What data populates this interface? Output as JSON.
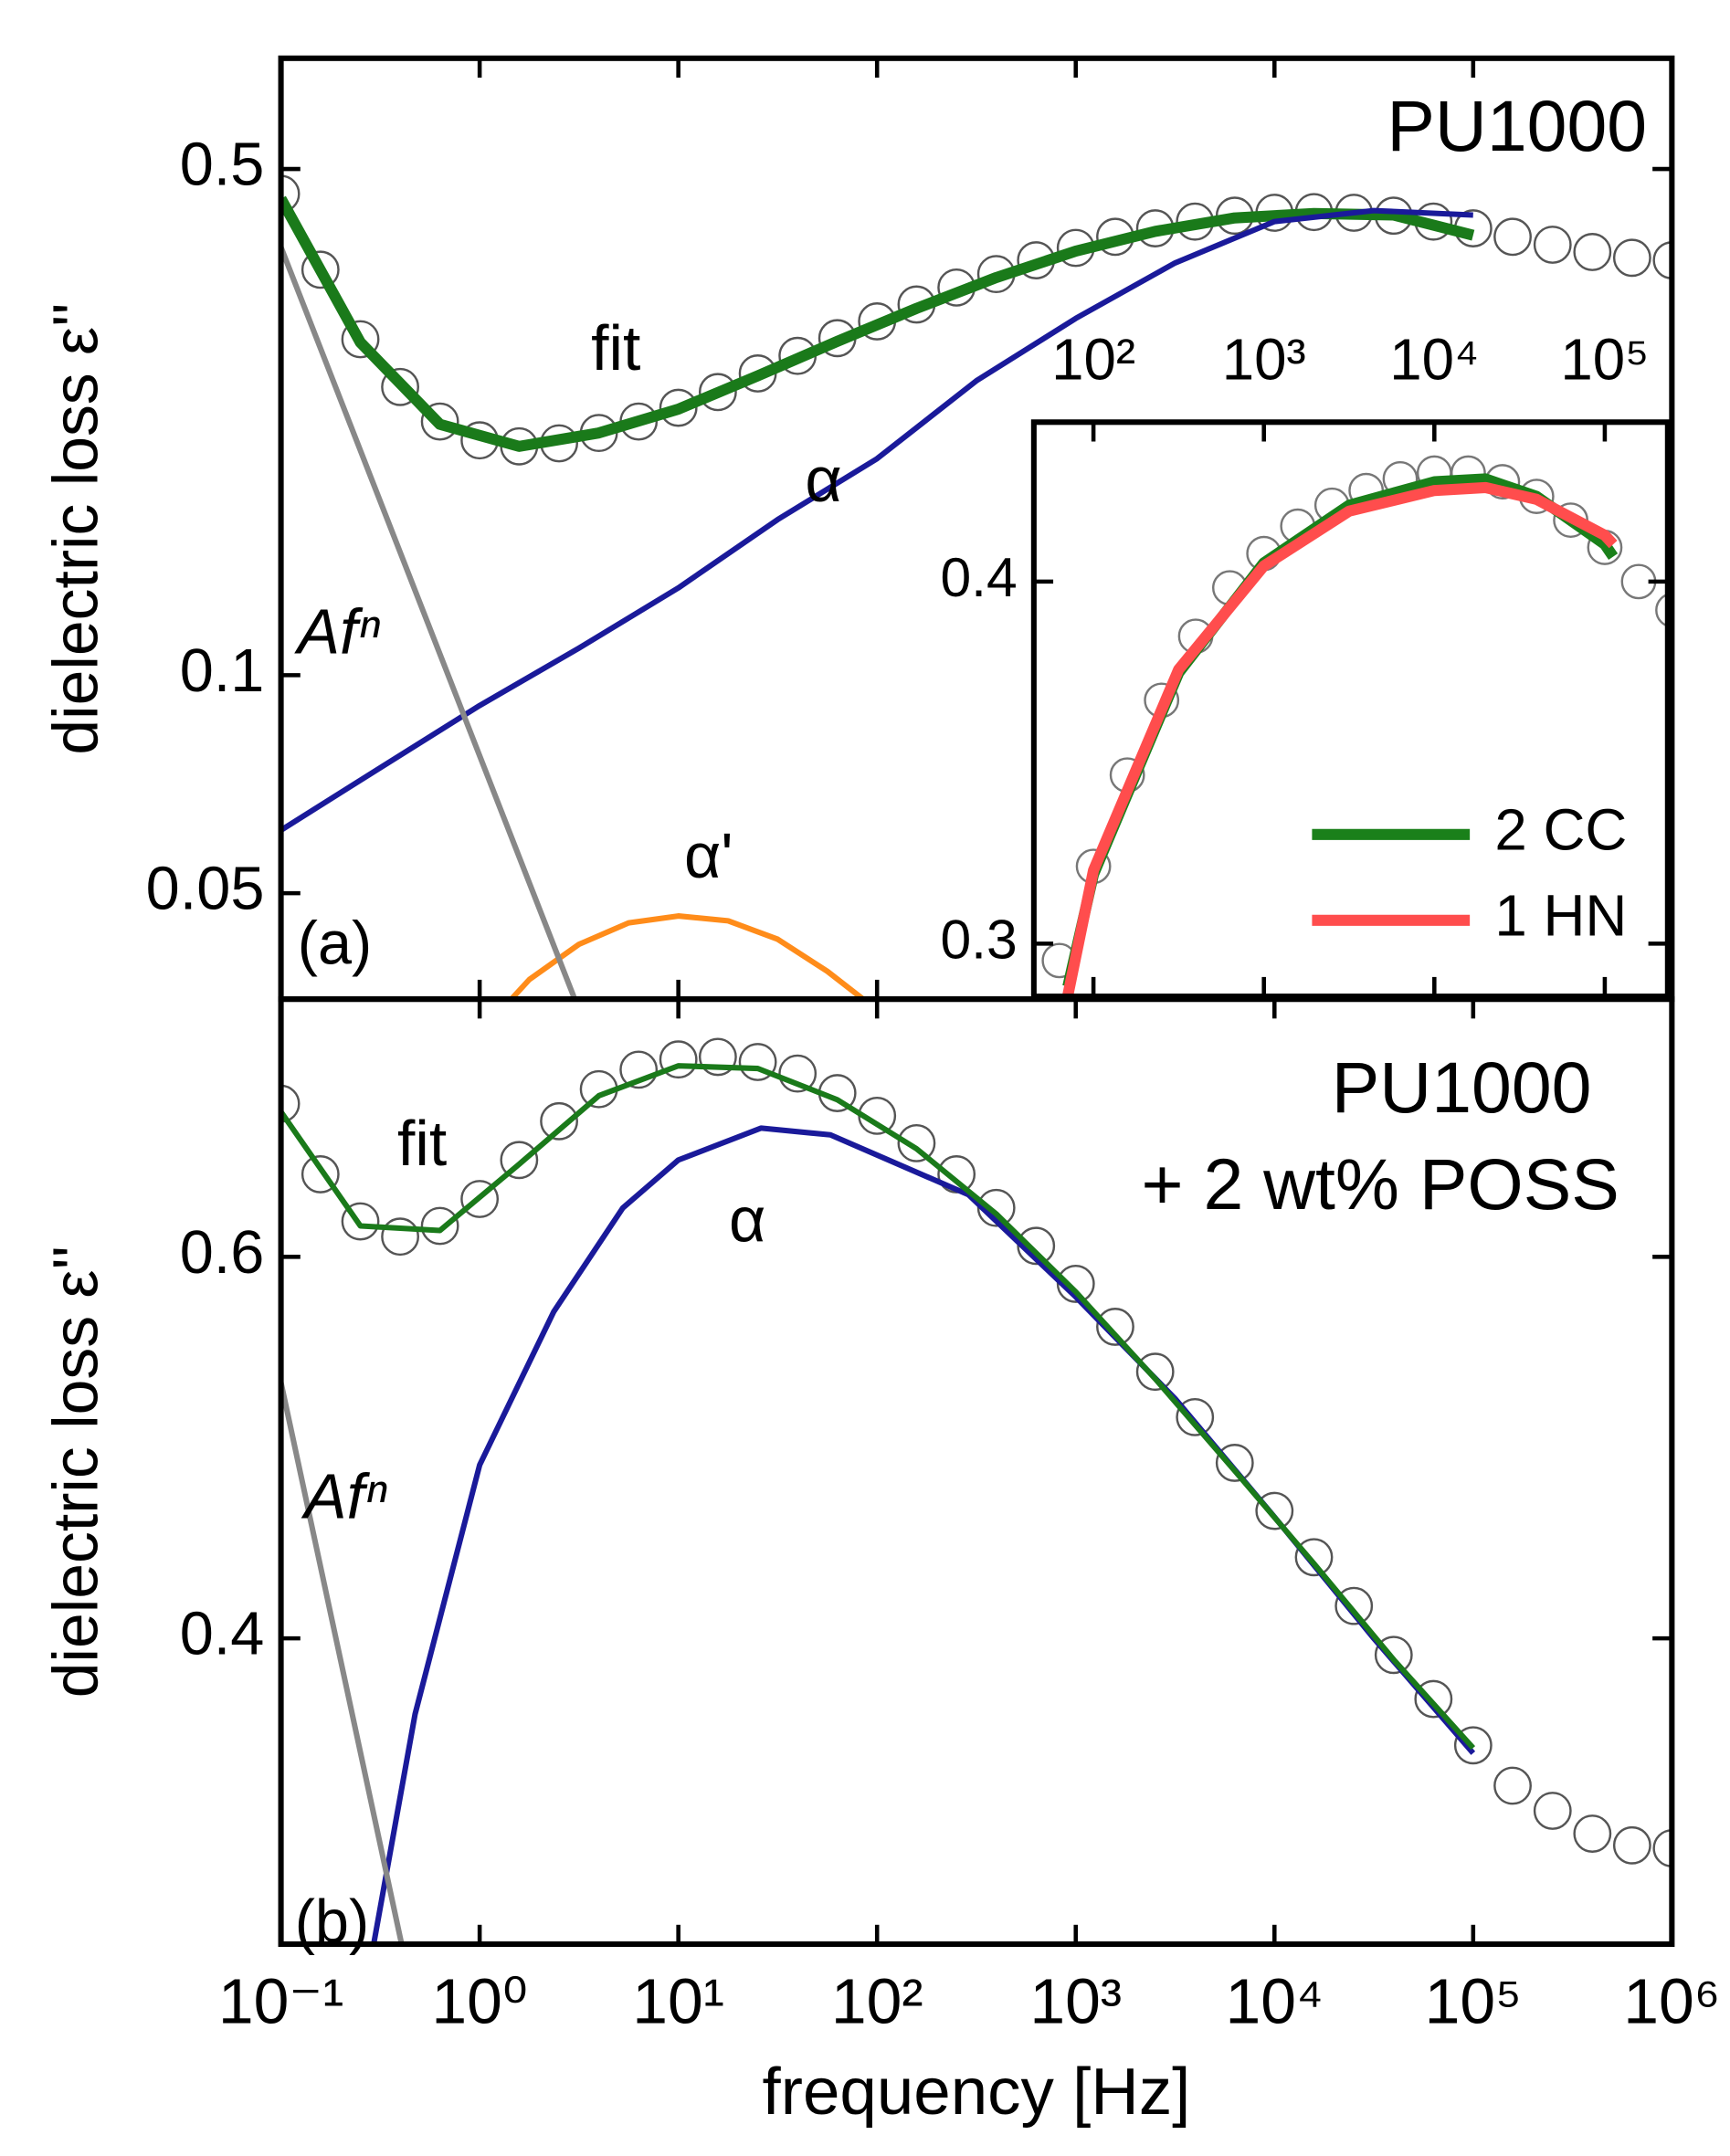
{
  "chart_data": [
    {
      "type": "line",
      "xscale": "log",
      "yscale": "log",
      "ylabel": "dielectric loss ε''",
      "xlim": [
        0.1,
        1000000
      ],
      "ylim": [
        0.0357,
        0.711
      ],
      "xticks": [
        0.1,
        1,
        10,
        100,
        1000,
        10000,
        100000,
        1000000
      ],
      "yticks": [
        0.05,
        0.1,
        0.5
      ],
      "annotations": [
        {
          "text": "PU1000",
          "color": "#000000"
        },
        {
          "text": "fit",
          "color": "#1b7a3c"
        },
        {
          "text": "α",
          "color": "#1a1a9a"
        },
        {
          "text": "Afⁿ",
          "color": "#888888"
        },
        {
          "text": "α'",
          "color": "#ff8c1a"
        },
        {
          "text": "(a)",
          "color": "#000000"
        }
      ],
      "series": [
        {
          "style": "circles",
          "color": "#555555",
          "x": [
            0.1,
            0.158,
            0.251,
            0.398,
            0.631,
            1,
            1.58,
            2.51,
            3.98,
            6.31,
            10,
            15.8,
            25.1,
            39.8,
            63.1,
            100,
            158,
            251,
            398,
            631,
            1000,
            1580,
            2510,
            3980,
            6310,
            10000,
            15800,
            25100,
            39800,
            63100,
            100000,
            158000,
            251000,
            398000,
            631000,
            1000000
          ],
          "values": [
            0.462,
            0.363,
            0.291,
            0.25,
            0.224,
            0.211,
            0.207,
            0.209,
            0.216,
            0.224,
            0.234,
            0.246,
            0.261,
            0.276,
            0.292,
            0.308,
            0.325,
            0.343,
            0.358,
            0.374,
            0.389,
            0.403,
            0.414,
            0.423,
            0.431,
            0.435,
            0.436,
            0.435,
            0.431,
            0.423,
            0.414,
            0.403,
            0.393,
            0.384,
            0.377,
            0.374
          ]
        },
        {
          "style": "line",
          "color": "#1a7a1a",
          "line_width": 8,
          "x": [
            0.1,
            0.251,
            0.631,
            1.58,
            3.98,
            10,
            25.1,
            63.1,
            158,
            398,
            1000,
            2510,
            6310,
            15800,
            39800,
            100000
          ],
          "values": [
            0.455,
            0.288,
            0.222,
            0.207,
            0.216,
            0.233,
            0.259,
            0.289,
            0.321,
            0.354,
            0.385,
            0.41,
            0.428,
            0.434,
            0.432,
            0.405
          ]
        },
        {
          "style": "line",
          "color": "#1a1a9a",
          "line_width": 4,
          "x": [
            0.1,
            0.316,
            1,
            3.16,
            10,
            31.6,
            100,
            316,
            1000,
            3162,
            10000,
            31623,
            100000
          ],
          "values": [
            0.0611,
            0.0745,
            0.0908,
            0.109,
            0.132,
            0.164,
            0.199,
            0.255,
            0.311,
            0.371,
            0.423,
            0.438,
            0.432
          ]
        },
        {
          "style": "line",
          "color": "#ff8c1a",
          "line_width": 4,
          "x": [
            1,
            1.78,
            3.16,
            5.62,
            10,
            17.8,
            31.6,
            56.2,
            100,
            158
          ],
          "values": [
            0.032,
            0.038,
            0.0425,
            0.0455,
            0.0465,
            0.0458,
            0.0432,
            0.039,
            0.0345,
            0.03
          ]
        },
        {
          "style": "line",
          "color": "#888888",
          "line_width": 4,
          "x": [
            0.1,
            5
          ],
          "values": [
            0.39,
            0.025
          ]
        }
      ]
    },
    {
      "type": "line",
      "xscale": "log",
      "yscale": "log",
      "xlim": [
        44.7,
        234000
      ],
      "ylim": [
        0.2877,
        0.454
      ],
      "xticks": [
        {
          "value": 100,
          "label": "10²"
        },
        {
          "value": 1000,
          "label": "10³"
        },
        {
          "value": 10000,
          "label": "10⁴"
        },
        {
          "value": 100000,
          "label": "10⁵"
        }
      ],
      "yticks": [
        0.3,
        0.4
      ],
      "series": [
        {
          "style": "circles",
          "color": "#777777",
          "x": [
            63.1,
            100,
            158,
            251,
            398,
            631,
            1000,
            1580,
            2510,
            3980,
            6310,
            10000,
            15800,
            25100,
            39800,
            63100,
            100000,
            158000,
            251000
          ],
          "values": [
            0.296,
            0.319,
            0.343,
            0.364,
            0.383,
            0.398,
            0.409,
            0.418,
            0.425,
            0.43,
            0.434,
            0.436,
            0.436,
            0.433,
            0.428,
            0.42,
            0.411,
            0.4,
            0.391
          ]
        },
        {
          "name": "2 CC",
          "style": "line",
          "color": "#1a801a",
          "line_width": 8,
          "x": [
            70.8,
            100,
            316,
            1000,
            3162,
            10000,
            20000,
            39800,
            100000,
            112000
          ],
          "values": [
            0.29,
            0.317,
            0.372,
            0.406,
            0.425,
            0.433,
            0.434,
            0.428,
            0.412,
            0.408
          ]
        },
        {
          "name": "1 HN",
          "style": "line",
          "color": "#ff4d4d",
          "line_width": 8,
          "x": [
            70.8,
            100,
            316,
            1000,
            3162,
            10000,
            20000,
            39800,
            100000,
            112000
          ],
          "values": [
            0.288,
            0.318,
            0.373,
            0.405,
            0.423,
            0.43,
            0.431,
            0.427,
            0.415,
            0.412
          ]
        }
      ]
    },
    {
      "type": "line",
      "xscale": "log",
      "yscale": "log",
      "xlabel": "frequency [Hz]",
      "ylabel": "dielectric loss ε''",
      "xlim": [
        0.1,
        1000000
      ],
      "ylim": [
        0.289,
        0.789
      ],
      "xticks": [
        {
          "value": 0.1,
          "label": "10⁻¹"
        },
        {
          "value": 1,
          "label": "10⁰"
        },
        {
          "value": 10,
          "label": "10¹"
        },
        {
          "value": 100,
          "label": "10²"
        },
        {
          "value": 1000,
          "label": "10³"
        },
        {
          "value": 10000,
          "label": "10⁴"
        },
        {
          "value": 100000,
          "label": "10⁵"
        },
        {
          "value": 1000000,
          "label": "10⁶"
        }
      ],
      "yticks": [
        0.4,
        0.6
      ],
      "annotations": [
        {
          "text": "PU1000",
          "color": "#000000"
        },
        {
          "text": "+ 2 wt% POSS",
          "color": "#000000"
        },
        {
          "text": "fit",
          "color": "#1b7a3c"
        },
        {
          "text": "α",
          "color": "#1a1a9a"
        },
        {
          "text": "Afⁿ",
          "color": "#888888"
        },
        {
          "text": "(b)",
          "color": "#000000"
        }
      ],
      "series": [
        {
          "style": "circles",
          "color": "#555555",
          "x": [
            0.1,
            0.158,
            0.251,
            0.398,
            0.631,
            1,
            1.58,
            2.51,
            3.98,
            6.31,
            10,
            15.8,
            25.1,
            39.8,
            63.1,
            100,
            158,
            251,
            398,
            631,
            1000,
            1580,
            2510,
            3980,
            6310,
            10000,
            15800,
            25100,
            39800,
            63100,
            100000,
            158000,
            251000,
            398000,
            631000,
            1000000
          ],
          "values": [
            0.706,
            0.655,
            0.623,
            0.613,
            0.62,
            0.638,
            0.665,
            0.693,
            0.717,
            0.732,
            0.74,
            0.742,
            0.738,
            0.729,
            0.714,
            0.697,
            0.677,
            0.655,
            0.632,
            0.607,
            0.583,
            0.557,
            0.531,
            0.506,
            0.482,
            0.458,
            0.436,
            0.414,
            0.393,
            0.375,
            0.357,
            0.342,
            0.333,
            0.325,
            0.321,
            0.32
          ]
        },
        {
          "style": "line",
          "color": "#1a1a9a",
          "line_width": 4,
          "x": [
            0.293,
            0.473,
            1,
            2.36,
            5.25,
            10,
            26.1,
            58.2,
            288,
            1000,
            3162,
            10000,
            31623,
            100000
          ],
          "values": [
            0.289,
            0.369,
            0.481,
            0.566,
            0.632,
            0.665,
            0.688,
            0.683,
            0.641,
            0.575,
            0.516,
            0.455,
            0.4,
            0.354
          ]
        },
        {
          "style": "line",
          "color": "#1a7a1a",
          "line_width": 4,
          "x": [
            0.1,
            0.251,
            0.631,
            1.58,
            3.98,
            10,
            25.1,
            63.1,
            158,
            398,
            1000,
            2510,
            6310,
            15800,
            39800,
            100000
          ],
          "values": [
            0.7,
            0.62,
            0.617,
            0.662,
            0.712,
            0.735,
            0.733,
            0.709,
            0.673,
            0.628,
            0.578,
            0.527,
            0.478,
            0.433,
            0.391,
            0.356
          ]
        },
        {
          "style": "line",
          "color": "#888888",
          "line_width": 4,
          "x": [
            0.1,
            0.5
          ],
          "values": [
            0.525,
            0.264
          ]
        }
      ]
    }
  ]
}
